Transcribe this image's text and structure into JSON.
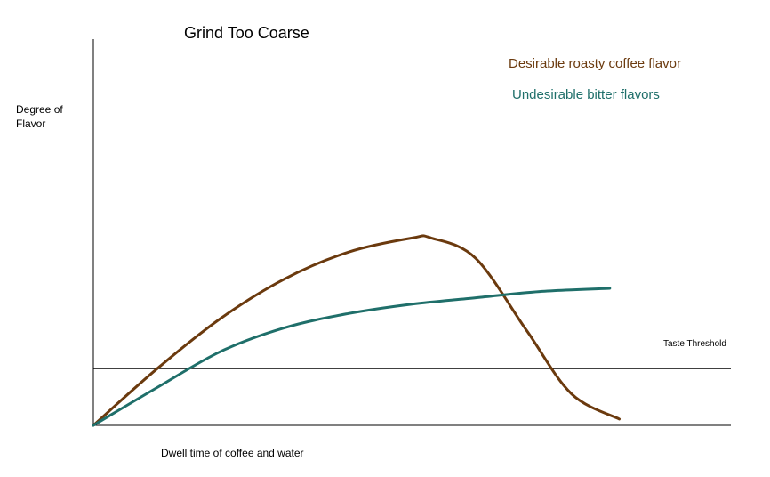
{
  "chart_data": {
    "type": "line",
    "title": "Grind Too Coarse",
    "xlabel": "Dwell time of coffee and water",
    "ylabel_lines": [
      "Degree of",
      "Flavor"
    ],
    "xlim": [
      0,
      100
    ],
    "ylim": [
      0,
      100
    ],
    "grid": false,
    "legend_placement": "top-right",
    "threshold": {
      "label": "Taste Threshold",
      "y": 18
    },
    "series": [
      {
        "name": "Desirable roasty coffee flavor",
        "color": "#6b3a0e",
        "x": [
          0,
          10,
          20,
          30,
          40,
          50,
          53,
          60,
          68,
          75,
          82.5
        ],
        "y": [
          0,
          18,
          34,
          46.5,
          55,
          59.5,
          59.5,
          53,
          30,
          10,
          2
        ]
      },
      {
        "name": "Undesirable bitter flavors",
        "color": "#1f6f6a",
        "x": [
          0,
          10,
          20,
          30,
          40,
          50,
          60,
          70,
          81
        ],
        "y": [
          0,
          12,
          23.5,
          31,
          35.5,
          38.5,
          40.5,
          42.5,
          43.5
        ]
      }
    ]
  }
}
